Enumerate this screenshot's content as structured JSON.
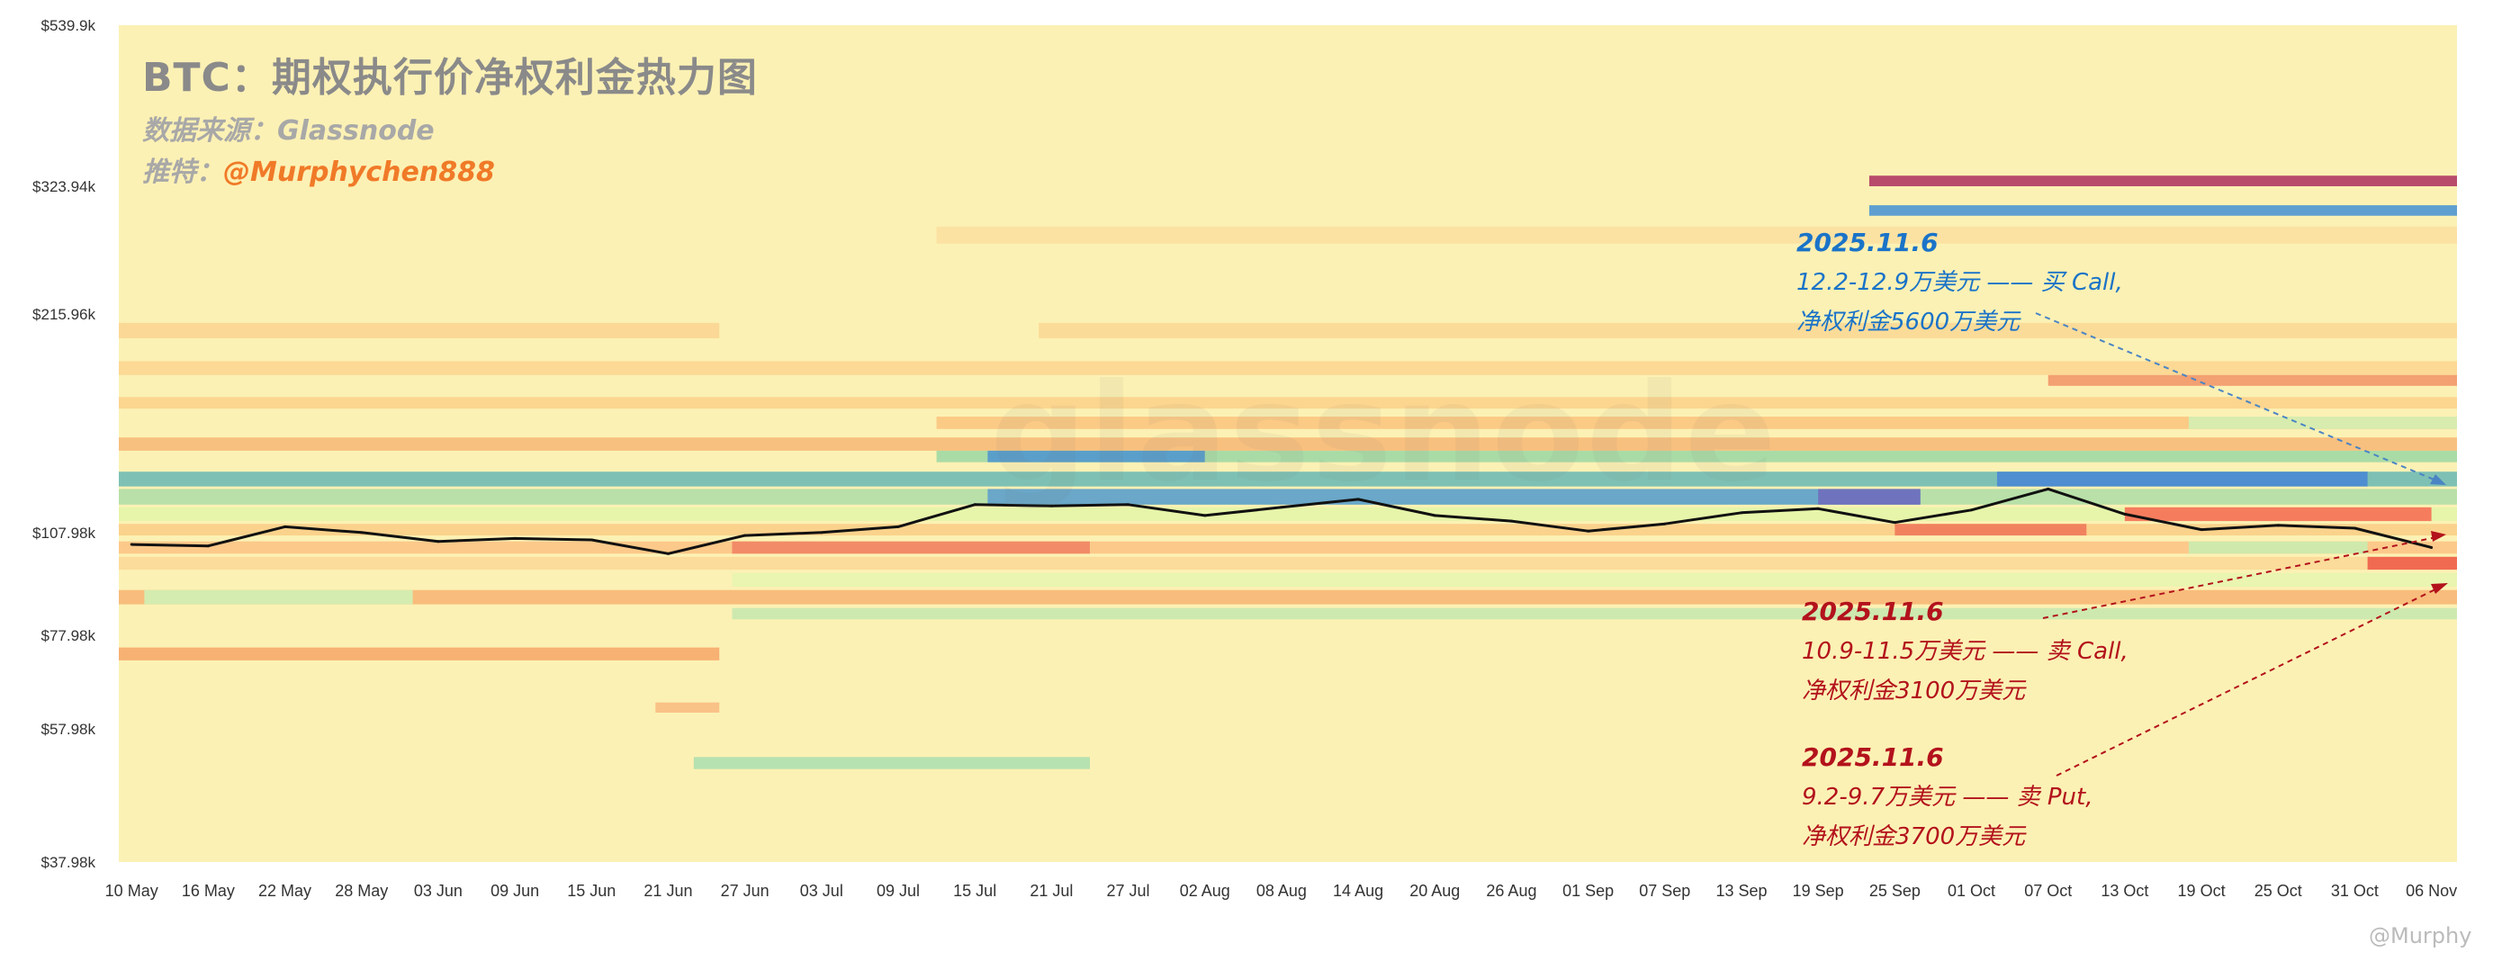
{
  "title": "BTC：期权执行价净权利金热力图",
  "source": "数据来源：Glassnode",
  "twitter_prefix": "推特：",
  "twitter_handle": "@Murphychen888",
  "watermark": "glassnode",
  "logo": "@Murphy",
  "colors": {
    "background": "#fcf1b4",
    "price_line": "#111111",
    "blue_text": "#1a73c8",
    "red_text": "#b3121c",
    "handle": "#f07a28"
  },
  "annotations": [
    {
      "date": "2025.11.6",
      "line1": "12.2-12.9万美元 —— 买 Call,",
      "line2": "净权利金5600万美元"
    },
    {
      "date": "2025.11.6",
      "line1": "10.9-11.5万美元 —— 卖 Call,",
      "line2": "净权利金3100万美元"
    },
    {
      "date": "2025.11.6",
      "line1": "9.2-9.7万美元 —— 卖 Put,",
      "line2": "净权利金3700万美元"
    }
  ],
  "chart_data": {
    "type": "heatmap",
    "title": "BTC：期权执行价净权利金热力图",
    "x_ticks": [
      "10 May",
      "16 May",
      "22 May",
      "28 May",
      "03 Jun",
      "09 Jun",
      "15 Jun",
      "21 Jun",
      "27 Jun",
      "03 Jul",
      "09 Jul",
      "15 Jul",
      "21 Jul",
      "27 Jul",
      "02 Aug",
      "08 Aug",
      "14 Aug",
      "20 Aug",
      "26 Aug",
      "01 Sep",
      "07 Sep",
      "13 Sep",
      "19 Sep",
      "25 Sep",
      "01 Oct",
      "07 Oct",
      "13 Oct",
      "19 Oct",
      "25 Oct",
      "31 Oct",
      "06 Nov"
    ],
    "y_ticks": [
      "$539.9k",
      "$323.94k",
      "$215.96k",
      "$107.98k",
      "$77.98k",
      "$57.98k",
      "$37.98k"
    ],
    "y_tick_values": [
      539.9,
      323.94,
      215.96,
      107.98,
      77.98,
      57.98,
      37.98
    ],
    "y_scale": "log",
    "y_unit": "k USD",
    "xlim": [
      "2025-05-09",
      "2025-11-08"
    ],
    "ylim": [
      37.98,
      539.9
    ],
    "bands": [
      {
        "low": 323.94,
        "high": 335,
        "start": "2025-09-23",
        "end": "2025-11-08",
        "color": "#b84a6c"
      },
      {
        "low": 295,
        "high": 305,
        "start": "2025-09-23",
        "end": "2025-11-08",
        "color": "#5f9fcf"
      },
      {
        "low": 270,
        "high": 285,
        "start": "2025-07-12",
        "end": "2025-11-08",
        "color": "#fbe2a3"
      },
      {
        "low": 200,
        "high": 210,
        "start": "2025-05-09",
        "end": "2025-06-25",
        "color": "#fbd896"
      },
      {
        "low": 200,
        "high": 210,
        "start": "2025-07-20",
        "end": "2025-11-08",
        "color": "#fbdb98"
      },
      {
        "low": 178,
        "high": 186,
        "start": "2025-05-09",
        "end": "2025-11-08",
        "color": "#fcd994"
      },
      {
        "low": 172,
        "high": 178,
        "start": "2025-10-07",
        "end": "2025-11-08",
        "color": "#f3a072"
      },
      {
        "low": 160,
        "high": 166,
        "start": "2025-05-09",
        "end": "2025-11-08",
        "color": "#fcd58f"
      },
      {
        "low": 150,
        "high": 156,
        "start": "2025-07-12",
        "end": "2025-11-08",
        "color": "#fbca85"
      },
      {
        "low": 150,
        "high": 156,
        "start": "2025-10-18",
        "end": "2025-11-08",
        "color": "#d7ecae"
      },
      {
        "low": 140,
        "high": 146,
        "start": "2025-05-09",
        "end": "2025-11-08",
        "color": "#f8c07e"
      },
      {
        "low": 135,
        "high": 140,
        "start": "2025-07-12",
        "end": "2025-11-08",
        "color": "#a9dba6"
      },
      {
        "low": 135,
        "high": 140,
        "start": "2025-07-16",
        "end": "2025-08-02",
        "color": "#5a9fca"
      },
      {
        "low": 125,
        "high": 131,
        "start": "2025-05-09",
        "end": "2025-11-08",
        "color": "#7ec1b4"
      },
      {
        "low": 125,
        "high": 131,
        "start": "2025-10-03",
        "end": "2025-11-01",
        "color": "#4f8ed0"
      },
      {
        "low": 118,
        "high": 124,
        "start": "2025-05-09",
        "end": "2025-11-08",
        "color": "#b8e0a8"
      },
      {
        "low": 118,
        "high": 124,
        "start": "2025-07-16",
        "end": "2025-09-27",
        "color": "#6aa7c8"
      },
      {
        "low": 118,
        "high": 124,
        "start": "2025-09-19",
        "end": "2025-09-27",
        "color": "#6f73bd"
      },
      {
        "low": 112,
        "high": 117,
        "start": "2025-05-09",
        "end": "2025-11-08",
        "color": "#e6f5a9"
      },
      {
        "low": 112,
        "high": 117,
        "start": "2025-10-13",
        "end": "2025-11-06",
        "color": "#f57d5e"
      },
      {
        "low": 107,
        "high": 111,
        "start": "2025-05-09",
        "end": "2025-11-08",
        "color": "#fad28c"
      },
      {
        "low": 107,
        "high": 111,
        "start": "2025-09-25",
        "end": "2025-10-10",
        "color": "#f1825f"
      },
      {
        "low": 101,
        "high": 105,
        "start": "2025-05-09",
        "end": "2025-11-08",
        "color": "#fcc98a"
      },
      {
        "low": 101,
        "high": 105,
        "start": "2025-06-26",
        "end": "2025-07-24",
        "color": "#f28b68"
      },
      {
        "low": 101,
        "high": 105,
        "start": "2025-10-18",
        "end": "2025-11-01",
        "color": "#cfe9ac"
      },
      {
        "low": 96,
        "high": 100,
        "start": "2025-05-09",
        "end": "2025-11-08",
        "color": "#fbdc9a"
      },
      {
        "low": 96,
        "high": 100,
        "start": "2025-11-01",
        "end": "2025-11-08",
        "color": "#f06a52"
      },
      {
        "low": 91,
        "high": 95,
        "start": "2025-06-26",
        "end": "2025-11-08",
        "color": "#e9f5b0"
      },
      {
        "low": 86,
        "high": 90,
        "start": "2025-05-09",
        "end": "2025-11-08",
        "color": "#f8bd7c"
      },
      {
        "low": 86,
        "high": 90,
        "start": "2025-05-11",
        "end": "2025-06-01",
        "color": "#d5ecb0"
      },
      {
        "low": 82,
        "high": 85,
        "start": "2025-06-26",
        "end": "2025-11-08",
        "color": "#cde9b0"
      },
      {
        "low": 72,
        "high": 75,
        "start": "2025-05-09",
        "end": "2025-06-25",
        "color": "#f7b173"
      },
      {
        "low": 61,
        "high": 63,
        "start": "2025-06-20",
        "end": "2025-06-25",
        "color": "#f9c287"
      },
      {
        "low": 51,
        "high": 53,
        "start": "2025-06-23",
        "end": "2025-07-24",
        "color": "#b6e1b0"
      }
    ],
    "price_series": {
      "x": [
        "2025-05-10",
        "2025-05-16",
        "2025-05-22",
        "2025-05-28",
        "2025-06-03",
        "2025-06-09",
        "2025-06-15",
        "2025-06-21",
        "2025-06-27",
        "2025-07-03",
        "2025-07-09",
        "2025-07-15",
        "2025-07-21",
        "2025-07-27",
        "2025-08-02",
        "2025-08-08",
        "2025-08-14",
        "2025-08-20",
        "2025-08-26",
        "2025-09-01",
        "2025-09-07",
        "2025-09-13",
        "2025-09-19",
        "2025-09-25",
        "2025-10-01",
        "2025-10-07",
        "2025-10-13",
        "2025-10-19",
        "2025-10-25",
        "2025-10-31",
        "2025-11-06"
      ],
      "values": [
        104,
        103.5,
        110,
        108,
        105,
        106,
        105.5,
        101,
        107,
        108,
        110,
        118,
        117.5,
        118,
        114,
        117,
        120,
        114,
        112,
        108.5,
        111,
        115,
        116.5,
        111.5,
        116,
        124,
        114.5,
        109,
        110.5,
        109.5,
        103
      ]
    }
  }
}
